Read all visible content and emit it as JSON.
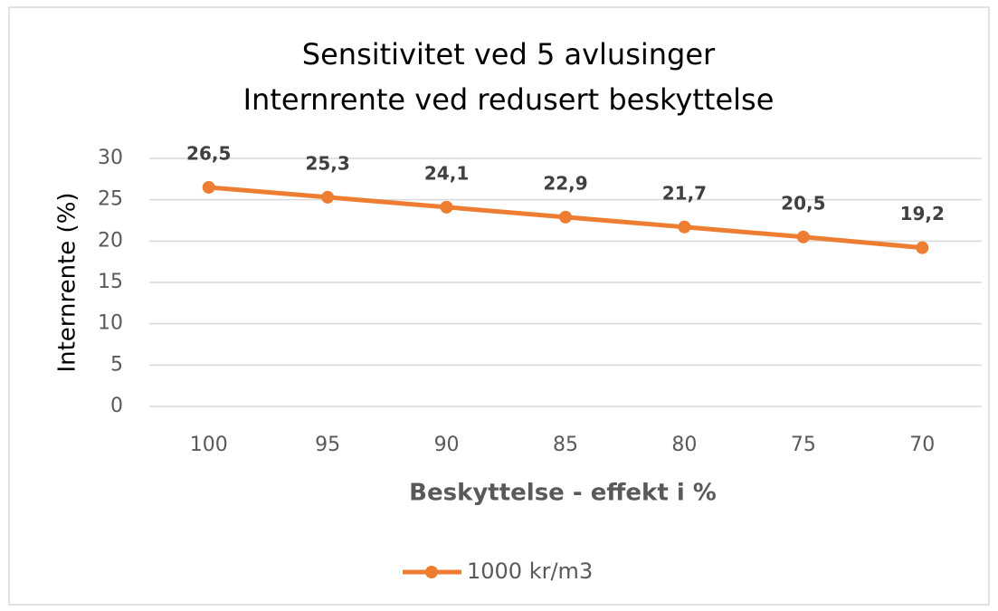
{
  "chart_data": {
    "type": "line",
    "title": "Sensitivitet ved 5 avlusinger",
    "subtitle": "Internrente ved redusert beskyttelse",
    "x_label": "Beskyttelse - effekt i %",
    "y_label": "Internrente (%)",
    "categories": [
      "100",
      "95",
      "90",
      "85",
      "80",
      "75",
      "70"
    ],
    "series": [
      {
        "name": "1000 kr/m3",
        "color": "#ed7d31",
        "values": [
          26.5,
          25.3,
          24.1,
          22.9,
          21.7,
          20.5,
          19.2
        ],
        "value_labels": [
          "26,5",
          "25,3",
          "24,1",
          "22,9",
          "21,7",
          "20,5",
          "19,2"
        ]
      }
    ],
    "ylim": [
      0,
      30
    ],
    "yticks": [
      0,
      5,
      10,
      15,
      20,
      25,
      30
    ],
    "grid": true,
    "legend": "bottom"
  }
}
